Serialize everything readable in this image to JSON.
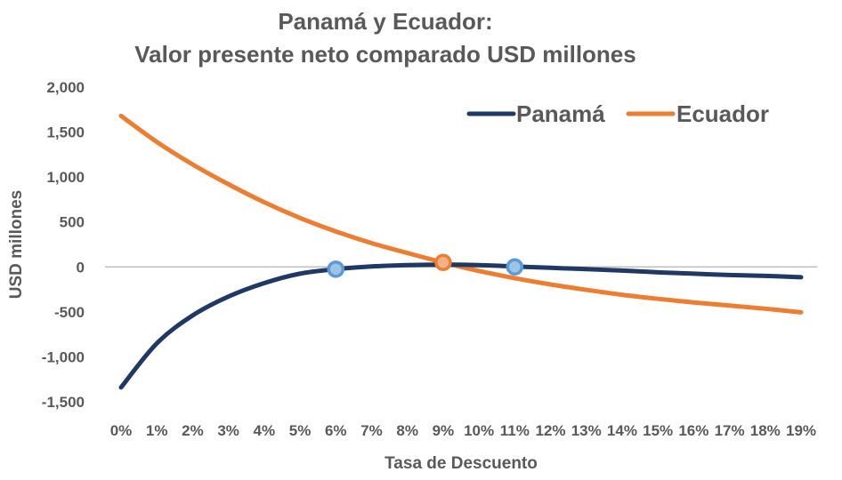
{
  "chart_data": {
    "type": "line",
    "title": [
      "Panamá y Ecuador:",
      "Valor presente neto comparado USD millones"
    ],
    "xlabel": "Tasa de Descuento",
    "ylabel": "USD millones",
    "categories": [
      "0%",
      "1%",
      "2%",
      "3%",
      "4%",
      "5%",
      "6%",
      "7%",
      "8%",
      "9%",
      "10%",
      "11%",
      "12%",
      "13%",
      "14%",
      "15%",
      "16%",
      "17%",
      "18%",
      "19%"
    ],
    "yticks": [
      "2,000",
      "1,500",
      "1,000",
      "500",
      "0",
      "-500",
      "-1,000",
      "-1,500"
    ],
    "ylim": [
      -1500,
      2000
    ],
    "ytick_values": [
      2000,
      1500,
      1000,
      500,
      0,
      -500,
      -1000,
      -1500
    ],
    "grid": false,
    "zero_line": true,
    "legend_position": "top-right",
    "series": [
      {
        "name": "Panamá",
        "color": "#1f3864",
        "values": [
          -1340,
          -850,
          -540,
          -330,
          -180,
          -75,
          -25,
          5,
          20,
          25,
          20,
          5,
          -10,
          -25,
          -40,
          -60,
          -75,
          -90,
          -100,
          -115
        ]
      },
      {
        "name": "Ecuador",
        "color": "#ed7d31",
        "values": [
          1680,
          1390,
          1140,
          920,
          720,
          545,
          395,
          265,
          155,
          50,
          -45,
          -125,
          -195,
          -255,
          -310,
          -355,
          -395,
          -430,
          -465,
          -505
        ]
      }
    ],
    "markers": [
      {
        "series": "Panamá",
        "x": 6,
        "y": -25,
        "color": "#9dc3e6",
        "edge": "#5b9bd5"
      },
      {
        "series": "Panamá",
        "x": 11,
        "y": 0,
        "color": "#9dc3e6",
        "edge": "#5b9bd5"
      },
      {
        "series": "Ecuador",
        "x": 9,
        "y": 50,
        "color": "#f4b183",
        "edge": "#ed7d31"
      }
    ],
    "colors": {
      "text": "#595959",
      "zero_line": "#bfbfbf"
    }
  }
}
